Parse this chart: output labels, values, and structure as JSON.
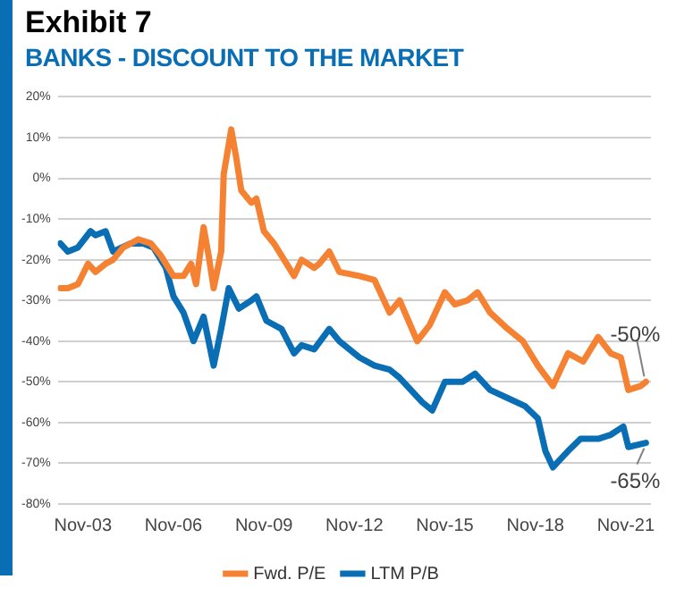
{
  "chart_data": {
    "type": "line",
    "title": "Exhibit 7",
    "subtitle": "BANKS - DISCOUNT TO THE MARKET",
    "xlim": [
      "2003-01",
      "2022-09"
    ],
    "xticks": [
      {
        "value": "2003-11",
        "label": "Nov-03"
      },
      {
        "value": "2006-11",
        "label": "Nov-06"
      },
      {
        "value": "2009-11",
        "label": "Nov-09"
      },
      {
        "value": "2012-11",
        "label": "Nov-12"
      },
      {
        "value": "2015-11",
        "label": "Nov-15"
      },
      {
        "value": "2018-11",
        "label": "Nov-18"
      },
      {
        "value": "2021-11",
        "label": "Nov-21"
      }
    ],
    "ylim": [
      -80,
      20
    ],
    "yticks": [
      {
        "value": -80,
        "label": "-80%"
      },
      {
        "value": -70,
        "label": "-70%"
      },
      {
        "value": -60,
        "label": "-60%"
      },
      {
        "value": -50,
        "label": "-50%"
      },
      {
        "value": -40,
        "label": "-40%"
      },
      {
        "value": -30,
        "label": "-30%"
      },
      {
        "value": -20,
        "label": "-20%"
      },
      {
        "value": -10,
        "label": "-10%"
      },
      {
        "value": 0,
        "label": "0%"
      },
      {
        "value": 10,
        "label": "10%"
      },
      {
        "value": 20,
        "label": "20%"
      }
    ],
    "grid": "y",
    "legend": "bottom",
    "marker": "none",
    "line_style": "solid",
    "series": [
      {
        "name": "Fwd. P/E",
        "color": "#f58233",
        "x": [
          "2003-02",
          "2003-05",
          "2003-09",
          "2004-01",
          "2004-04",
          "2004-08",
          "2004-11",
          "2005-03",
          "2005-09",
          "2006-02",
          "2006-06",
          "2006-11",
          "2007-03",
          "2007-06",
          "2007-08",
          "2007-11",
          "2008-01",
          "2008-03",
          "2008-06",
          "2008-07",
          "2008-10",
          "2008-12",
          "2009-02",
          "2009-06",
          "2009-08",
          "2009-11",
          "2010-03",
          "2010-08",
          "2010-11",
          "2011-02",
          "2011-07",
          "2011-09",
          "2012-01",
          "2012-05",
          "2013-01",
          "2013-07",
          "2014-01",
          "2014-05",
          "2014-12",
          "2015-05",
          "2015-11",
          "2016-03",
          "2016-08",
          "2016-12",
          "2017-05",
          "2017-12",
          "2018-06",
          "2018-12",
          "2019-06",
          "2019-12",
          "2020-06",
          "2020-12",
          "2021-05",
          "2021-09",
          "2021-12",
          "2022-05",
          "2022-07"
        ],
        "values": [
          -27,
          -27,
          -26,
          -21,
          -23,
          -21,
          -20,
          -17,
          -15,
          -16,
          -19,
          -24,
          -24,
          -21,
          -26,
          -12,
          -19,
          -27,
          -18,
          1,
          12,
          5,
          -3,
          -6,
          -5,
          -13,
          -16,
          -21,
          -24,
          -20,
          -22,
          -21,
          -18,
          -23,
          -24,
          -25,
          -33,
          -30,
          -40,
          -36,
          -28,
          -31,
          -30,
          -28,
          -33,
          -37,
          -40,
          -46,
          -51,
          -43,
          -45,
          -39,
          -43,
          -44,
          -52,
          -51,
          -50
        ]
      },
      {
        "name": "LTM P/B",
        "color": "#0a6eb4",
        "x": [
          "2003-02",
          "2003-05",
          "2003-09",
          "2004-02",
          "2004-04",
          "2004-08",
          "2004-11",
          "2005-06",
          "2005-11",
          "2006-03",
          "2006-08",
          "2006-11",
          "2007-03",
          "2007-07",
          "2007-11",
          "2008-03",
          "2008-06",
          "2008-09",
          "2009-01",
          "2009-06",
          "2009-08",
          "2009-12",
          "2010-06",
          "2010-11",
          "2011-02",
          "2011-07",
          "2012-01",
          "2012-05",
          "2013-01",
          "2013-07",
          "2014-01",
          "2014-05",
          "2015-02",
          "2015-06",
          "2015-11",
          "2016-06",
          "2016-11",
          "2017-05",
          "2017-12",
          "2018-07",
          "2018-12",
          "2019-03",
          "2019-06",
          "2019-12",
          "2020-05",
          "2020-12",
          "2021-05",
          "2021-10",
          "2021-12",
          "2022-07"
        ],
        "values": [
          -16,
          -18,
          -17,
          -13,
          -14,
          -13,
          -18,
          -16,
          -16,
          -17,
          -22,
          -29,
          -33,
          -40,
          -34,
          -46,
          -37,
          -27,
          -32,
          -30,
          -29,
          -35,
          -37,
          -43,
          -41,
          -42,
          -37,
          -40,
          -44,
          -46,
          -47,
          -49,
          -55,
          -57,
          -50,
          -50,
          -48,
          -52,
          -54,
          -56,
          -59,
          -67,
          -71,
          -67,
          -64,
          -64,
          -63,
          -61,
          -66,
          -65
        ]
      }
    ],
    "annotations": [
      {
        "text": "-50%",
        "x": "2022-07",
        "y": -50
      },
      {
        "text": "-65%",
        "x": "2022-07",
        "y": -65
      }
    ]
  }
}
